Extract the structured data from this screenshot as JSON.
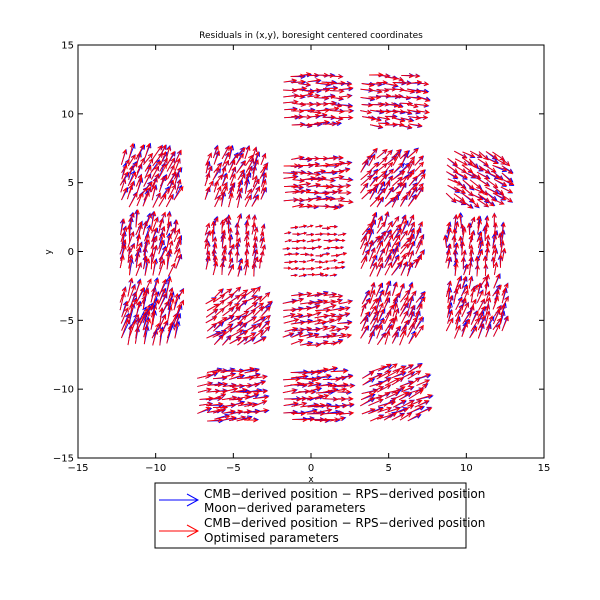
{
  "chart_data": {
    "type": "quiver",
    "title": "Residuals in (x,y), boresight centered coordinates",
    "xlabel": "x",
    "ylabel": "y",
    "xlim": [
      -15,
      15
    ],
    "ylim": [
      -15,
      15
    ],
    "xticks": [
      -15,
      -10,
      -5,
      0,
      5,
      10,
      15
    ],
    "yticks": [
      -15,
      -10,
      -5,
      0,
      5,
      10,
      15
    ],
    "grid": false,
    "legend": {
      "position": "below plot",
      "entries": [
        {
          "line1": "CMB−derived position − RPS−derived position",
          "line2": "Moon−derived parameters",
          "color": "#0000ff"
        },
        {
          "line1": "CMB−derived position − RPS−derived position",
          "line2": "Optimised parameters",
          "color": "#ff0000"
        }
      ]
    },
    "colors": {
      "moon": "#0000ff",
      "optimised": "#ff0000"
    },
    "series": [
      {
        "name": "Moon−derived parameters",
        "color": "#0000ff"
      },
      {
        "name": "Optimised parameters",
        "color": "#ff0000"
      }
    ],
    "horns": [
      {
        "center": [
          0,
          11
        ],
        "span": [
          3.5,
          3.5
        ],
        "direction": [
          1,
          0
        ],
        "length": 0.85
      },
      {
        "center": [
          5,
          11
        ],
        "span": [
          3.5,
          3.5
        ],
        "direction": [
          1,
          -0.15
        ],
        "length": 0.8
      },
      {
        "center": [
          -5,
          5
        ],
        "span": [
          3.5,
          3.5
        ],
        "direction": [
          0.4,
          1
        ],
        "length": 0.95
      },
      {
        "center": [
          0,
          5
        ],
        "span": [
          3.5,
          3.5
        ],
        "direction": [
          1,
          0.05
        ],
        "length": 0.85
      },
      {
        "center": [
          5,
          5
        ],
        "span": [
          3.5,
          3.5
        ],
        "direction": [
          0.6,
          0.8
        ],
        "length": 0.9
      },
      {
        "center": [
          -10.5,
          5
        ],
        "span": [
          3.5,
          3.5
        ],
        "direction": [
          0.45,
          1
        ],
        "length": 1.05
      },
      {
        "center": [
          10.5,
          5.5
        ],
        "span": [
          3.5,
          3.5
        ],
        "direction": [
          0.8,
          -0.6
        ],
        "length": 0.9
      },
      {
        "center": [
          -10.5,
          0
        ],
        "span": [
          3.5,
          3.5
        ],
        "direction": [
          0.2,
          1
        ],
        "length": 1.1
      },
      {
        "center": [
          -5,
          0
        ],
        "span": [
          3.5,
          3.5
        ],
        "direction": [
          0.2,
          1
        ],
        "length": 0.85
      },
      {
        "center": [
          0,
          0
        ],
        "span": [
          3.5,
          3.5
        ],
        "direction": [
          1,
          0.1
        ],
        "length": 0.45
      },
      {
        "center": [
          5,
          0
        ],
        "span": [
          3.5,
          3.5
        ],
        "direction": [
          0.5,
          1
        ],
        "length": 1.0
      },
      {
        "center": [
          10.5,
          0
        ],
        "span": [
          3.5,
          3.5
        ],
        "direction": [
          0.1,
          1
        ],
        "length": 0.9
      },
      {
        "center": [
          -10.5,
          -5
        ],
        "span": [
          3.5,
          3.5
        ],
        "direction": [
          0.3,
          1
        ],
        "length": 1.3
      },
      {
        "center": [
          -5,
          -5
        ],
        "span": [
          3.5,
          3.5
        ],
        "direction": [
          0.7,
          0.6
        ],
        "length": 0.9
      },
      {
        "center": [
          0,
          -5
        ],
        "span": [
          3.5,
          3.5
        ],
        "direction": [
          1,
          0.25
        ],
        "length": 0.85
      },
      {
        "center": [
          5,
          -5
        ],
        "span": [
          3.5,
          3.5
        ],
        "direction": [
          0.45,
          1
        ],
        "length": 1.0
      },
      {
        "center": [
          10.5,
          -4.5
        ],
        "span": [
          3.5,
          3.5
        ],
        "direction": [
          0.35,
          1
        ],
        "length": 1.0
      },
      {
        "center": [
          -5.5,
          -10.5
        ],
        "span": [
          3.5,
          3.5
        ],
        "direction": [
          1,
          0.2
        ],
        "length": 0.95
      },
      {
        "center": [
          0,
          -10.5
        ],
        "span": [
          3.5,
          3.5
        ],
        "direction": [
          1,
          0.1
        ],
        "length": 1.0
      },
      {
        "center": [
          5,
          -10.5
        ],
        "span": [
          3.5,
          3.5
        ],
        "direction": [
          1,
          0.5
        ],
        "length": 1.0
      }
    ]
  }
}
